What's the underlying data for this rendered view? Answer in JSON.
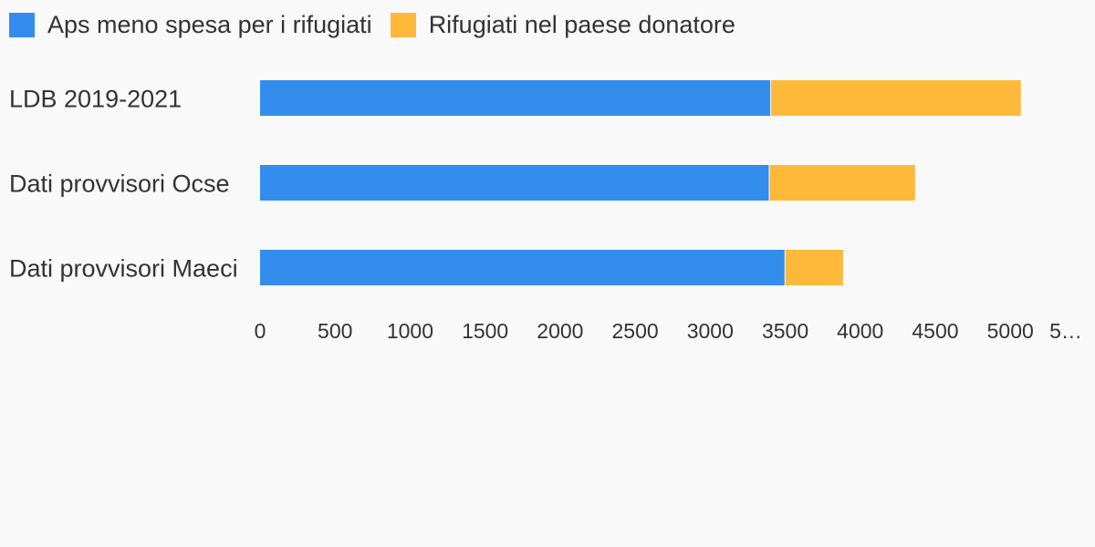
{
  "chart_data": {
    "type": "bar",
    "orientation": "horizontal",
    "stacked": true,
    "categories": [
      "LDB 2019-2021",
      "Dati provvisori Ocse",
      "Dati provvisori Maeci"
    ],
    "series": [
      {
        "name": "Aps meno spesa per i rifugiati",
        "color": "#338ded",
        "values": [
          3400,
          3390,
          3495
        ]
      },
      {
        "name": "Rifugiati nel paese donatore",
        "color": "#ffb93a",
        "values": [
          1670,
          975,
          390
        ]
      }
    ],
    "xticks": [
      "0",
      "500",
      "1000",
      "1500",
      "2000",
      "2500",
      "3000",
      "3500",
      "4000",
      "4500",
      "5000",
      "5…"
    ],
    "xlim": [
      0,
      5500
    ],
    "xlabel": "",
    "ylabel": "",
    "title": "",
    "grid": false,
    "legend": "top-left"
  }
}
